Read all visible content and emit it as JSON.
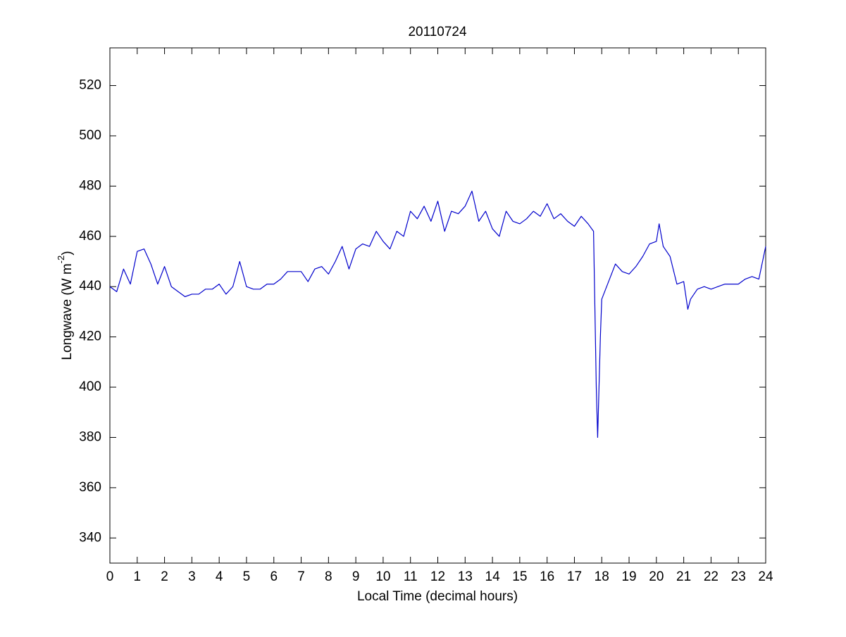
{
  "chart_data": {
    "type": "line",
    "title": "20110724",
    "x_label": "Local Time (decimal hours)",
    "y_label": {
      "text": "Longwave (W m",
      "superscript": "-2",
      "suffix": ")"
    },
    "xlim": [
      0,
      24
    ],
    "ylim": [
      330,
      535
    ],
    "xticks": [
      0,
      1,
      2,
      3,
      4,
      5,
      6,
      7,
      8,
      9,
      10,
      11,
      12,
      13,
      14,
      15,
      16,
      17,
      18,
      19,
      20,
      21,
      22,
      23,
      24
    ],
    "yticks": [
      340,
      360,
      380,
      400,
      420,
      440,
      460,
      480,
      500,
      520
    ],
    "grid": false,
    "series": [
      {
        "color": "#0000cc",
        "x": [
          0,
          0.25,
          0.5,
          0.75,
          1,
          1.25,
          1.5,
          1.75,
          2,
          2.25,
          2.5,
          2.75,
          3,
          3.25,
          3.5,
          3.75,
          4,
          4.25,
          4.5,
          4.75,
          5,
          5.25,
          5.5,
          5.75,
          6,
          6.25,
          6.5,
          6.75,
          7,
          7.25,
          7.5,
          7.75,
          8,
          8.25,
          8.5,
          8.75,
          9,
          9.25,
          9.5,
          9.75,
          10,
          10.25,
          10.5,
          10.75,
          11,
          11.25,
          11.5,
          11.75,
          12,
          12.25,
          12.5,
          12.75,
          13,
          13.25,
          13.5,
          13.75,
          14,
          14.25,
          14.5,
          14.75,
          15,
          15.25,
          15.5,
          15.75,
          16,
          16.25,
          16.5,
          16.75,
          17,
          17.25,
          17.5,
          17.7,
          17.8,
          17.85,
          17.95,
          18,
          18.25,
          18.5,
          18.75,
          19,
          19.25,
          19.5,
          19.75,
          20,
          20.1,
          20.25,
          20.5,
          20.75,
          21,
          21.15,
          21.25,
          21.5,
          21.75,
          22,
          22.25,
          22.5,
          22.75,
          23,
          23.25,
          23.5,
          23.75,
          24
        ],
        "values": [
          440,
          438,
          447,
          441,
          454,
          455,
          449,
          441,
          448,
          440,
          438,
          436,
          437,
          437,
          439,
          439,
          441,
          437,
          440,
          450,
          440,
          439,
          439,
          441,
          441,
          443,
          446,
          446,
          446,
          442,
          447,
          448,
          445,
          450,
          456,
          447,
          455,
          457,
          456,
          462,
          458,
          455,
          462,
          460,
          470,
          467,
          472,
          466,
          474,
          462,
          470,
          469,
          472,
          478,
          466,
          470,
          463,
          460,
          470,
          466,
          465,
          467,
          470,
          468,
          473,
          467,
          469,
          466,
          464,
          468,
          465,
          462,
          400,
          380,
          420,
          435,
          442,
          449,
          446,
          445,
          448,
          452,
          457,
          458,
          465,
          456,
          452,
          441,
          442,
          431,
          435,
          439,
          440,
          439,
          440,
          441,
          441,
          441,
          443,
          444,
          443,
          456
        ]
      }
    ]
  }
}
